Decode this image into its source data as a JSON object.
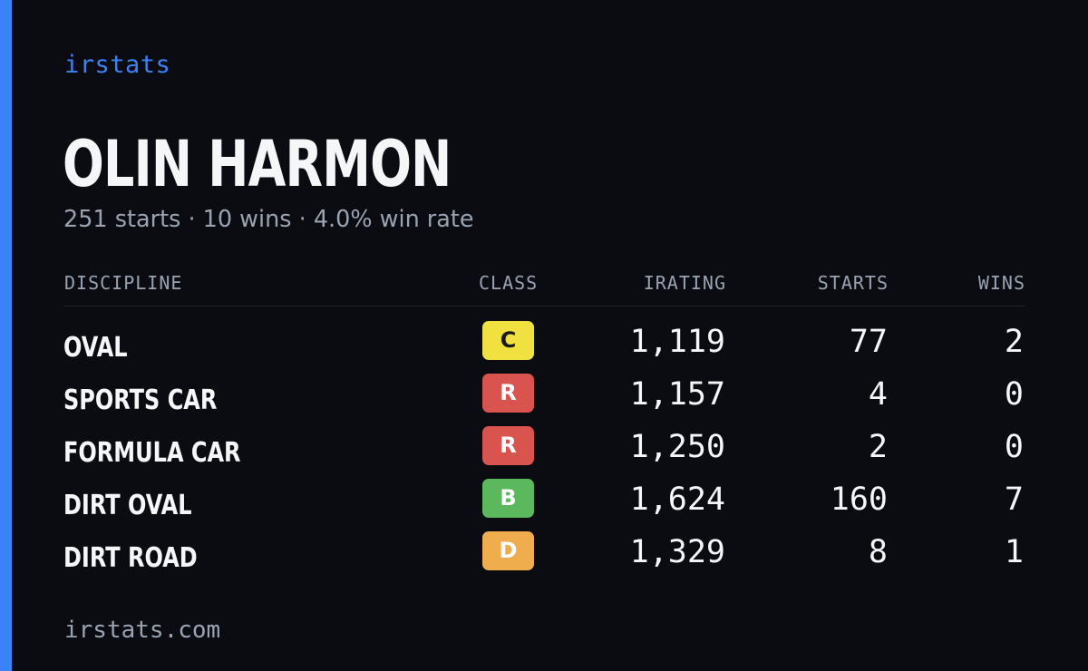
{
  "brand": "irstats",
  "driver": {
    "name": "OLIN HARMON",
    "summary": "251 starts · 10 wins · 4.0% win rate"
  },
  "table": {
    "headers": {
      "discipline": "DISCIPLINE",
      "class": "CLASS",
      "irating": "IRATING",
      "starts": "STARTS",
      "wins": "WINS"
    },
    "rows": [
      {
        "discipline": "OVAL",
        "class": "C",
        "class_color": "#f0e040",
        "class_text_color": "#1a1a1a",
        "irating": "1,119",
        "starts": "77",
        "wins": "2"
      },
      {
        "discipline": "SPORTS CAR",
        "class": "R",
        "class_color": "#d9534f",
        "class_text_color": "#ffffff",
        "irating": "1,157",
        "starts": "4",
        "wins": "0"
      },
      {
        "discipline": "FORMULA CAR",
        "class": "R",
        "class_color": "#d9534f",
        "class_text_color": "#ffffff",
        "irating": "1,250",
        "starts": "2",
        "wins": "0"
      },
      {
        "discipline": "DIRT OVAL",
        "class": "B",
        "class_color": "#5cb85c",
        "class_text_color": "#ffffff",
        "irating": "1,624",
        "starts": "160",
        "wins": "7"
      },
      {
        "discipline": "DIRT ROAD",
        "class": "D",
        "class_color": "#f0ad4e",
        "class_text_color": "#ffffff",
        "irating": "1,329",
        "starts": "8",
        "wins": "1"
      }
    ]
  },
  "footer": "irstats.com",
  "colors": {
    "background": "#0a0c12",
    "accent": "#3b82f6",
    "text_primary": "#f5f6f8",
    "text_muted": "#9aa3b2"
  }
}
